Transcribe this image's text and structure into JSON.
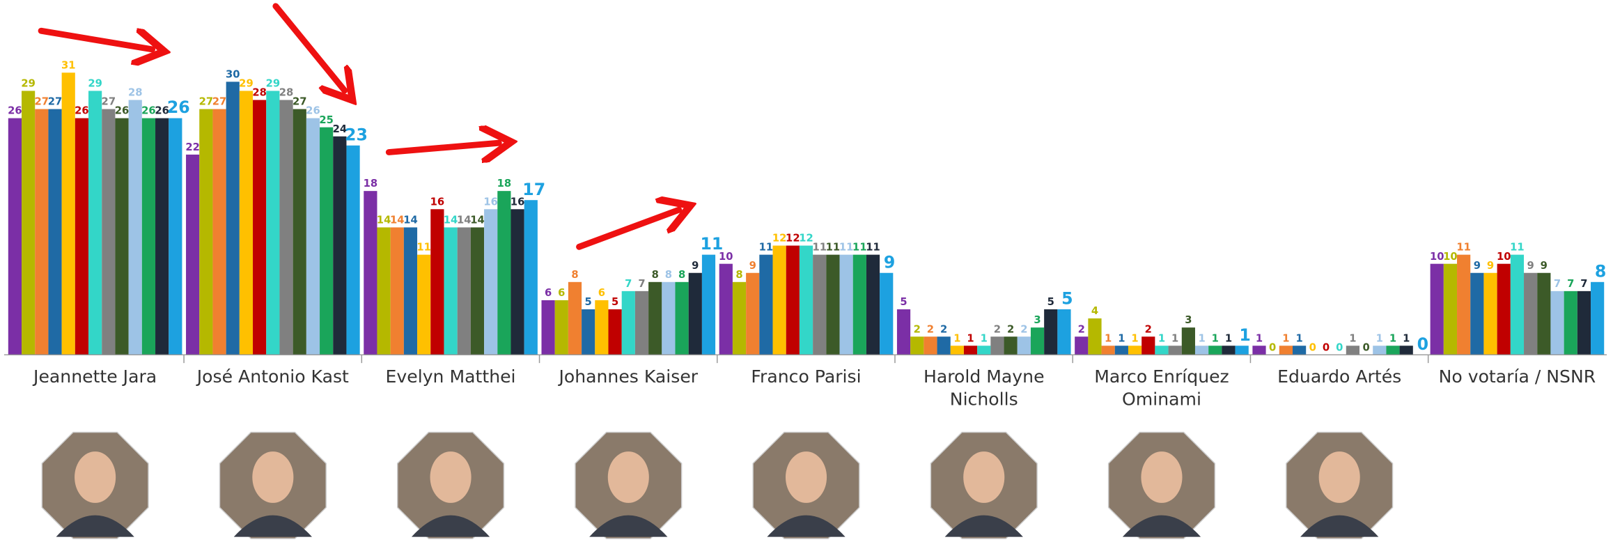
{
  "chart_data": {
    "type": "bar",
    "categories": [
      "Jeannette Jara",
      "José Antonio Kast",
      "Evelyn Matthei",
      "Johannes Kaiser",
      "Franco Parisi",
      "Harold Mayne Nicholls",
      "Marco Enríquez Ominami",
      "Eduardo Artés",
      "No votaría / NSNR"
    ],
    "series": [
      {
        "color": "#7b2fa6",
        "values": [
          26,
          22,
          18,
          6,
          10,
          5,
          2,
          1,
          10
        ]
      },
      {
        "color": "#b5b800",
        "values": [
          29,
          27,
          14,
          6,
          8,
          2,
          4,
          0,
          10
        ]
      },
      {
        "color": "#f08030",
        "values": [
          27,
          27,
          14,
          8,
          9,
          2,
          1,
          1,
          11
        ]
      },
      {
        "color": "#1f6aa5",
        "values": [
          27,
          30,
          14,
          5,
          11,
          2,
          1,
          1,
          9
        ]
      },
      {
        "color": "#ffc000",
        "values": [
          31,
          29,
          11,
          6,
          12,
          1,
          1,
          0,
          9
        ]
      },
      {
        "color": "#c00000",
        "values": [
          26,
          28,
          16,
          5,
          12,
          1,
          2,
          0,
          10
        ]
      },
      {
        "color": "#33d6c8",
        "values": [
          29,
          29,
          14,
          7,
          12,
          1,
          1,
          0,
          11
        ]
      },
      {
        "color": "#808080",
        "values": [
          27,
          28,
          14,
          7,
          11,
          2,
          1,
          1,
          9
        ]
      },
      {
        "color": "#3c5a28",
        "values": [
          26,
          27,
          14,
          8,
          11,
          2,
          3,
          0,
          9
        ]
      },
      {
        "color": "#9dc3e6",
        "values": [
          28,
          26,
          16,
          8,
          11,
          2,
          1,
          1,
          7
        ]
      },
      {
        "color": "#1aa55a",
        "values": [
          26,
          25,
          18,
          8,
          11,
          3,
          1,
          1,
          7
        ]
      },
      {
        "color": "#1f2a3a",
        "values": [
          26,
          24,
          16,
          9,
          11,
          5,
          1,
          1,
          7
        ]
      },
      {
        "color": "#1da1e0",
        "values": [
          26,
          23,
          17,
          11,
          9,
          5,
          1,
          0,
          8
        ]
      }
    ]
  }
}
